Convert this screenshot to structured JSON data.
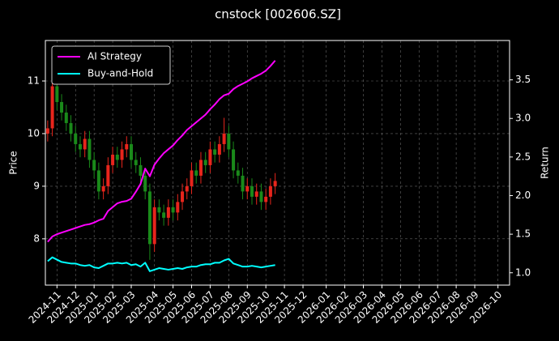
{
  "chart_data": {
    "type": "candlestick",
    "title": "cnstock [002606.SZ]",
    "ylabel": "Price",
    "y2label": "Return",
    "categories": [
      null,
      null,
      "2024-11",
      null,
      null,
      null,
      "2024-12",
      null,
      null,
      null,
      "2025-01",
      null,
      null,
      null,
      "2025-02",
      null,
      null,
      null,
      "2025-03",
      null,
      null,
      null,
      null,
      "2025-04",
      null,
      null,
      null,
      "2025-05",
      null,
      null,
      null,
      "2025-06",
      null,
      null,
      null,
      "2025-07",
      null,
      null,
      null,
      "2025-08",
      null,
      null,
      null,
      "2025-09",
      null,
      null,
      null,
      "2025-10",
      null,
      null,
      null,
      "2025-11",
      null,
      null,
      null,
      "2025-12",
      null,
      null,
      null,
      null,
      "2026-01",
      null,
      null,
      null,
      "2026-02",
      null,
      null,
      null,
      "2026-03",
      null,
      null,
      null,
      "2026-04",
      null,
      null,
      null,
      "2026-05",
      null,
      null,
      null,
      "2026-06",
      null,
      null,
      null,
      "2026-07",
      null,
      null,
      null,
      "2026-08",
      null,
      null,
      null,
      "2026-09",
      null,
      null,
      null,
      null,
      "2026-10",
      null,
      null
    ],
    "open": [
      10.0,
      10.1,
      10.9,
      10.6,
      10.4,
      10.2,
      10.0,
      9.8,
      9.7,
      9.9,
      9.5,
      9.3,
      8.9,
      9.0,
      9.4,
      9.6,
      9.5,
      9.7,
      9.8,
      9.5,
      9.4,
      9.2,
      8.9,
      7.9,
      8.6,
      8.5,
      8.4,
      8.6,
      8.5,
      8.7,
      8.9,
      9.0,
      9.3,
      9.2,
      9.5,
      9.4,
      9.7,
      9.6,
      9.8,
      10.0,
      9.7,
      9.3,
      9.2,
      8.9,
      9.0,
      8.8,
      8.9,
      8.7,
      8.8,
      9.0,
      null,
      null,
      null,
      null,
      null,
      null,
      null,
      null,
      null,
      null,
      null,
      null,
      null,
      null,
      null,
      null,
      null,
      null,
      null,
      null,
      null,
      null,
      null,
      null,
      null,
      null,
      null,
      null,
      null,
      null,
      null,
      null,
      null,
      null,
      null,
      null,
      null,
      null,
      null,
      null,
      null,
      null,
      null,
      null,
      null,
      null,
      null,
      null,
      null,
      null
    ],
    "high": [
      10.25,
      11.2,
      11.05,
      10.75,
      10.55,
      10.35,
      10.15,
      9.95,
      10.05,
      10.05,
      9.65,
      9.45,
      9.15,
      9.55,
      9.75,
      9.75,
      9.85,
      9.95,
      9.95,
      9.65,
      9.55,
      9.35,
      9.05,
      8.75,
      8.75,
      8.65,
      8.75,
      8.75,
      8.85,
      9.05,
      9.15,
      9.45,
      9.45,
      9.65,
      9.65,
      9.85,
      9.85,
      9.95,
      10.3,
      10.15,
      9.85,
      9.45,
      9.35,
      9.15,
      9.15,
      9.05,
      9.05,
      8.95,
      9.15,
      9.25,
      null,
      null,
      null,
      null,
      null,
      null,
      null,
      null,
      null,
      null,
      null,
      null,
      null,
      null,
      null,
      null,
      null,
      null,
      null,
      null,
      null,
      null,
      null,
      null,
      null,
      null,
      null,
      null,
      null,
      null,
      null,
      null,
      null,
      null,
      null,
      null,
      null,
      null,
      null,
      null,
      null,
      null,
      null,
      null,
      null,
      null,
      null,
      null,
      null,
      null
    ],
    "low": [
      9.85,
      9.95,
      10.45,
      10.25,
      10.05,
      9.85,
      9.65,
      9.55,
      9.55,
      9.35,
      9.15,
      8.75,
      8.75,
      8.85,
      9.25,
      9.35,
      9.35,
      9.55,
      9.35,
      9.25,
      9.05,
      8.75,
      7.6,
      7.75,
      8.35,
      8.25,
      8.25,
      8.35,
      8.35,
      8.55,
      8.75,
      8.85,
      9.05,
      9.05,
      9.25,
      9.25,
      9.45,
      9.45,
      9.65,
      9.55,
      9.15,
      9.05,
      8.75,
      8.75,
      8.65,
      8.65,
      8.55,
      8.55,
      8.65,
      8.85,
      null,
      null,
      null,
      null,
      null,
      null,
      null,
      null,
      null,
      null,
      null,
      null,
      null,
      null,
      null,
      null,
      null,
      null,
      null,
      null,
      null,
      null,
      null,
      null,
      null,
      null,
      null,
      null,
      null,
      null,
      null,
      null,
      null,
      null,
      null,
      null,
      null,
      null,
      null,
      null,
      null,
      null,
      null,
      null,
      null,
      null,
      null,
      null,
      null,
      null
    ],
    "close": [
      10.1,
      10.9,
      10.6,
      10.4,
      10.2,
      10.0,
      9.8,
      9.7,
      9.9,
      9.5,
      9.3,
      8.9,
      9.0,
      9.4,
      9.6,
      9.5,
      9.7,
      9.8,
      9.5,
      9.4,
      9.2,
      8.9,
      7.9,
      8.6,
      8.5,
      8.4,
      8.6,
      8.5,
      8.7,
      8.9,
      9.0,
      9.3,
      9.2,
      9.5,
      9.4,
      9.7,
      9.6,
      9.8,
      10.0,
      9.7,
      9.3,
      9.2,
      8.9,
      9.0,
      8.8,
      8.9,
      8.7,
      8.8,
      9.0,
      9.1,
      null,
      null,
      null,
      null,
      null,
      null,
      null,
      null,
      null,
      null,
      null,
      null,
      null,
      null,
      null,
      null,
      null,
      null,
      null,
      null,
      null,
      null,
      null,
      null,
      null,
      null,
      null,
      null,
      null,
      null,
      null,
      null,
      null,
      null,
      null,
      null,
      null,
      null,
      null,
      null,
      null,
      null,
      null,
      null,
      null,
      null,
      null,
      null,
      null,
      null
    ],
    "up_color": "#e8251c",
    "down_color": "#1a8a1a",
    "series": [
      {
        "name": "AI Strategy",
        "color": "#ff00ff",
        "axis": "y2",
        "values": [
          1.4,
          1.47,
          1.5,
          1.52,
          1.54,
          1.56,
          1.58,
          1.6,
          1.62,
          1.63,
          1.65,
          1.68,
          1.7,
          1.8,
          1.85,
          1.9,
          1.92,
          1.93,
          1.96,
          2.05,
          2.15,
          2.35,
          2.25,
          2.4,
          2.48,
          2.55,
          2.6,
          2.65,
          2.72,
          2.78,
          2.85,
          2.9,
          2.95,
          3.0,
          3.05,
          3.12,
          3.18,
          3.25,
          3.3,
          3.32,
          3.38,
          3.42,
          3.45,
          3.48,
          3.52,
          3.55,
          3.58,
          3.62,
          3.68,
          3.75,
          null,
          null,
          null,
          null,
          null,
          null,
          null,
          null,
          null,
          null,
          null,
          null,
          null,
          null,
          null,
          null,
          null,
          null,
          null,
          null,
          null,
          null,
          null,
          null,
          null,
          null,
          null,
          null,
          null,
          null,
          null,
          null,
          null,
          null,
          null,
          null,
          null,
          null,
          null,
          null,
          null,
          null,
          null,
          null,
          null,
          null,
          null,
          null,
          null,
          null
        ]
      },
      {
        "name": "Buy-and-Hold",
        "color": "#00ffff",
        "axis": "y2",
        "values": [
          1.15,
          1.2,
          1.17,
          1.14,
          1.13,
          1.12,
          1.12,
          1.1,
          1.09,
          1.1,
          1.07,
          1.06,
          1.09,
          1.12,
          1.12,
          1.13,
          1.12,
          1.13,
          1.1,
          1.11,
          1.08,
          1.13,
          1.02,
          1.04,
          1.06,
          1.05,
          1.04,
          1.05,
          1.06,
          1.05,
          1.07,
          1.08,
          1.08,
          1.1,
          1.11,
          1.11,
          1.13,
          1.13,
          1.16,
          1.18,
          1.12,
          1.1,
          1.08,
          1.08,
          1.09,
          1.08,
          1.07,
          1.08,
          1.09,
          1.1,
          null,
          null,
          null,
          null,
          null,
          null,
          null,
          null,
          null,
          null,
          null,
          null,
          null,
          null,
          null,
          null,
          null,
          null,
          null,
          null,
          null,
          null,
          null,
          null,
          null,
          null,
          null,
          null,
          null,
          null,
          null,
          null,
          null,
          null,
          null,
          null,
          null,
          null,
          null,
          null,
          null,
          null,
          null,
          null,
          null,
          null,
          null,
          null,
          null,
          null
        ]
      }
    ],
    "ylim": [
      7.12,
      11.77
    ],
    "yticks": [
      8,
      9,
      10,
      11
    ],
    "y2lim": [
      0.84,
      4.01
    ],
    "y2ticks": [
      {
        "value": 1,
        "label": "1.0"
      },
      1.5,
      {
        "value": 2,
        "label": "2.0"
      },
      2.5,
      {
        "value": 3,
        "label": "3.0"
      },
      3.5
    ],
    "grid": true,
    "legend": "upper left"
  }
}
